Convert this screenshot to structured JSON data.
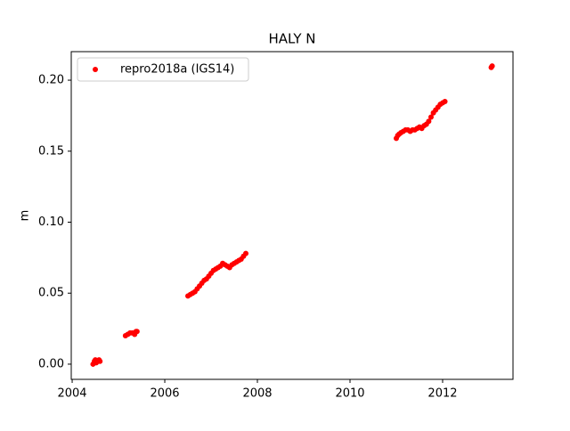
{
  "chart_data": {
    "type": "scatter",
    "title": "HALY N",
    "ylabel": "m",
    "xlim": [
      2003.98,
      2013.52
    ],
    "xticks": [
      2004,
      2006,
      2008,
      2010,
      2012
    ],
    "ylim": [
      -0.0107,
      0.2201
    ],
    "yticks": [
      {
        "value": 0,
        "label": "0.00"
      },
      0.05,
      {
        "value": 0.1,
        "label": "0.10"
      },
      0.15,
      {
        "value": 0.2,
        "label": "0.20"
      }
    ],
    "legend": "upper left",
    "series": [
      {
        "name": "repro2018a (IGS14)",
        "color": "#ff0000",
        "x": [
          2004.45,
          2004.48,
          2004.5,
          2004.52,
          2004.55,
          2004.58,
          2004.6,
          2005.15,
          2005.2,
          2005.25,
          2005.3,
          2005.35,
          2005.38,
          2005.4,
          2006.5,
          2006.55,
          2006.6,
          2006.65,
          2006.7,
          2006.75,
          2006.8,
          2006.85,
          2006.9,
          2006.95,
          2007.0,
          2007.05,
          2007.1,
          2007.15,
          2007.2,
          2007.25,
          2007.3,
          2007.35,
          2007.4,
          2007.45,
          2007.5,
          2007.55,
          2007.6,
          2007.65,
          2007.7,
          2007.75,
          2011.0,
          2011.03,
          2011.06,
          2011.1,
          2011.15,
          2011.2,
          2011.25,
          2011.3,
          2011.35,
          2011.4,
          2011.45,
          2011.5,
          2011.55,
          2011.6,
          2011.65,
          2011.7,
          2011.75,
          2011.8,
          2011.85,
          2011.9,
          2011.95,
          2012.0,
          2012.05,
          2013.05,
          2013.07
        ],
        "values": [
          0.0,
          0.002,
          0.003,
          0.001,
          0.002,
          0.003,
          0.002,
          0.02,
          0.021,
          0.022,
          0.022,
          0.021,
          0.023,
          0.023,
          0.048,
          0.049,
          0.05,
          0.051,
          0.053,
          0.055,
          0.057,
          0.059,
          0.06,
          0.062,
          0.064,
          0.066,
          0.067,
          0.068,
          0.069,
          0.071,
          0.07,
          0.069,
          0.068,
          0.07,
          0.071,
          0.072,
          0.073,
          0.074,
          0.076,
          0.078,
          0.159,
          0.161,
          0.162,
          0.163,
          0.164,
          0.165,
          0.165,
          0.164,
          0.165,
          0.165,
          0.166,
          0.167,
          0.166,
          0.168,
          0.169,
          0.171,
          0.174,
          0.177,
          0.179,
          0.181,
          0.183,
          0.184,
          0.185,
          0.209,
          0.21
        ]
      }
    ]
  }
}
